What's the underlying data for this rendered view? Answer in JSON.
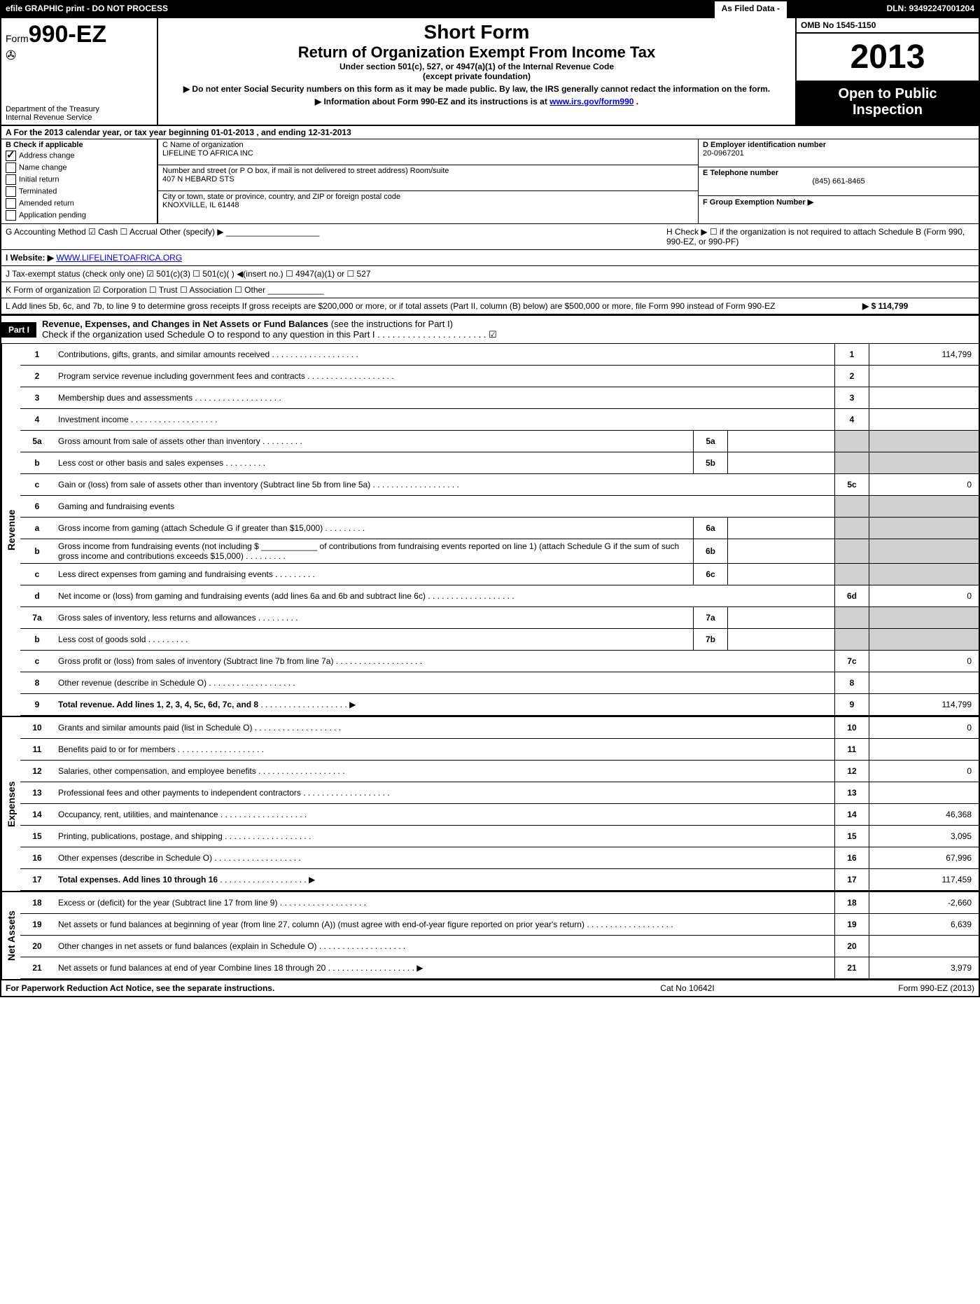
{
  "topbar": {
    "left": "efile GRAPHIC print - DO NOT PROCESS",
    "mid": "As Filed Data -",
    "right": "DLN: 93492247001204"
  },
  "header": {
    "form_prefix": "Form",
    "form_number": "990-EZ",
    "dept1": "Department of the Treasury",
    "dept2": "Internal Revenue Service",
    "short_form": "Short Form",
    "title": "Return of Organization Exempt From Income Tax",
    "sub1": "Under section 501(c), 527, or 4947(a)(1) of the Internal Revenue Code",
    "sub2": "(except private foundation)",
    "note1": "▶ Do not enter Social Security numbers on this form as it may be made public. By law, the IRS generally cannot redact the information on the form.",
    "note2_prefix": "▶ Information about Form 990-EZ and its instructions is at ",
    "note2_link": "www.irs.gov/form990",
    "note2_suffix": ".",
    "omb": "OMB No 1545-1150",
    "year": "2013",
    "open1": "Open to Public",
    "open2": "Inspection"
  },
  "rowA": "A  For the 2013 calendar year, or tax year beginning 01-01-2013          , and ending 12-31-2013",
  "boxB": {
    "label": "B  Check if applicable",
    "opts": [
      {
        "t": "Address change",
        "on": true
      },
      {
        "t": "Name change",
        "on": false
      },
      {
        "t": "Initial return",
        "on": false
      },
      {
        "t": "Terminated",
        "on": false
      },
      {
        "t": "Amended return",
        "on": false
      },
      {
        "t": "Application pending",
        "on": false
      }
    ]
  },
  "boxC": {
    "c_label": "C Name of organization",
    "c_val": "LIFELINE TO AFRICA INC",
    "addr_label": "Number and street (or P O box, if mail is not delivered to street address) Room/suite",
    "addr_val": "407 N HEBARD STS",
    "city_label": "City or town, state or province, country, and ZIP or foreign postal code",
    "city_val": "KNOXVILLE, IL 61448"
  },
  "boxD": {
    "d_label": "D Employer identification number",
    "d_val": "20-0967201",
    "e_label": "E Telephone number",
    "e_val": "(845) 661-8465",
    "f_label": "F Group Exemption Number  ▶"
  },
  "midG": "G Accounting Method   ☑ Cash  ☐ Accrual  Other (specify) ▶ ____________________",
  "midH": "H  Check ▶  ☐  if the organization is not required to attach Schedule B (Form 990, 990-EZ, or 990-PF)",
  "midI_label": "I Website: ▶ ",
  "midI_link": "WWW.LIFELINETOAFRICA.ORG",
  "midJ": "J Tax-exempt status (check only one) ☑ 501(c)(3)  ☐ 501(c)(  ) ◀(insert no.) ☐ 4947(a)(1) or ☐ 527",
  "midK": "K Form of organization   ☑ Corporation  ☐ Trust  ☐ Association  ☐ Other  ____________",
  "midL": "L Add lines 5b, 6c, and 7b, to line 9 to determine gross receipts  If gross receipts are $200,000 or more, or if total assets (Part II, column (B) below) are $500,000 or more, file Form 990 instead of Form 990-EZ",
  "midL_amt": "▶ $ 114,799",
  "part1": {
    "tab": "Part I",
    "title": "Revenue, Expenses, and Changes in Net Assets or Fund Balances",
    "title_note": " (see the instructions for Part I)",
    "check": "Check if the organization used Schedule O to respond to any question in this Part I . . . . . . . . . . . . . . . . . . . . . . ☑"
  },
  "lines": [
    {
      "n": "1",
      "d": "Contributions, gifts, grants, and similar amounts received",
      "bn": "1",
      "amt": "114,799"
    },
    {
      "n": "2",
      "d": "Program service revenue including government fees and contracts",
      "bn": "2",
      "amt": ""
    },
    {
      "n": "3",
      "d": "Membership dues and assessments",
      "bn": "3",
      "amt": ""
    },
    {
      "n": "4",
      "d": "Investment income",
      "bn": "4",
      "amt": ""
    },
    {
      "n": "5a",
      "d": "Gross amount from sale of assets other than inventory",
      "mn": "5a",
      "mv": "",
      "shade": true
    },
    {
      "n": "b",
      "d": "Less  cost or other basis and sales expenses",
      "mn": "5b",
      "mv": "",
      "shade": true
    },
    {
      "n": "c",
      "d": "Gain or (loss) from sale of assets other than inventory (Subtract line 5b from line 5a)",
      "bn": "5c",
      "amt": "0"
    },
    {
      "n": "6",
      "d": "Gaming and fundraising events",
      "shade": true
    },
    {
      "n": "a",
      "d": "Gross income from gaming (attach Schedule G if greater than $15,000)",
      "mn": "6a",
      "mv": "",
      "shade": true
    },
    {
      "n": "b",
      "d": "Gross income from fundraising events (not including $ ____________ of contributions from fundraising events reported on line 1) (attach Schedule G if the sum of such gross income and contributions exceeds $15,000)",
      "mn": "6b",
      "mv": "",
      "shade": true
    },
    {
      "n": "c",
      "d": "Less  direct expenses from gaming and fundraising events",
      "mn": "6c",
      "mv": "",
      "shade": true
    },
    {
      "n": "d",
      "d": "Net income or (loss) from gaming and fundraising events (add lines 6a and 6b and subtract line 6c)",
      "bn": "6d",
      "amt": "0"
    },
    {
      "n": "7a",
      "d": "Gross sales of inventory, less returns and allowances",
      "mn": "7a",
      "mv": "",
      "shade": true
    },
    {
      "n": "b",
      "d": "Less  cost of goods sold",
      "mn": "7b",
      "mv": "",
      "shade": true
    },
    {
      "n": "c",
      "d": "Gross profit or (loss) from sales of inventory (Subtract line 7b from line 7a)",
      "bn": "7c",
      "amt": "0"
    },
    {
      "n": "8",
      "d": "Other revenue (describe in Schedule O)",
      "bn": "8",
      "amt": ""
    },
    {
      "n": "9",
      "d": "Total revenue. Add lines 1, 2, 3, 4, 5c, 6d, 7c, and 8",
      "bn": "9",
      "amt": "114,799",
      "bold": true,
      "arrow": true
    }
  ],
  "expenses": [
    {
      "n": "10",
      "d": "Grants and similar amounts paid (list in Schedule O)",
      "bn": "10",
      "amt": "0"
    },
    {
      "n": "11",
      "d": "Benefits paid to or for members",
      "bn": "11",
      "amt": ""
    },
    {
      "n": "12",
      "d": "Salaries, other compensation, and employee benefits",
      "bn": "12",
      "amt": "0"
    },
    {
      "n": "13",
      "d": "Professional fees and other payments to independent contractors",
      "bn": "13",
      "amt": ""
    },
    {
      "n": "14",
      "d": "Occupancy, rent, utilities, and maintenance",
      "bn": "14",
      "amt": "46,368"
    },
    {
      "n": "15",
      "d": "Printing, publications, postage, and shipping",
      "bn": "15",
      "amt": "3,095"
    },
    {
      "n": "16",
      "d": "Other expenses (describe in Schedule O)",
      "bn": "16",
      "amt": "67,996"
    },
    {
      "n": "17",
      "d": "Total expenses. Add lines 10 through 16",
      "bn": "17",
      "amt": "117,459",
      "bold": true,
      "arrow": true
    }
  ],
  "netassets": [
    {
      "n": "18",
      "d": "Excess or (deficit) for the year (Subtract line 17 from line 9)",
      "bn": "18",
      "amt": "-2,660"
    },
    {
      "n": "19",
      "d": "Net assets or fund balances at beginning of year (from line 27, column (A)) (must agree with end-of-year figure reported on prior year's return)",
      "bn": "19",
      "amt": "6,639"
    },
    {
      "n": "20",
      "d": "Other changes in net assets or fund balances (explain in Schedule O)",
      "bn": "20",
      "amt": ""
    },
    {
      "n": "21",
      "d": "Net assets or fund balances at end of year  Combine lines 18 through 20",
      "bn": "21",
      "amt": "3,979",
      "arrow": true
    }
  ],
  "side_labels": {
    "rev": "Revenue",
    "exp": "Expenses",
    "net": "Net Assets"
  },
  "footer": {
    "l": "For Paperwork Reduction Act Notice, see the separate instructions.",
    "m": "Cat No 10642I",
    "r": "Form 990-EZ (2013)"
  }
}
